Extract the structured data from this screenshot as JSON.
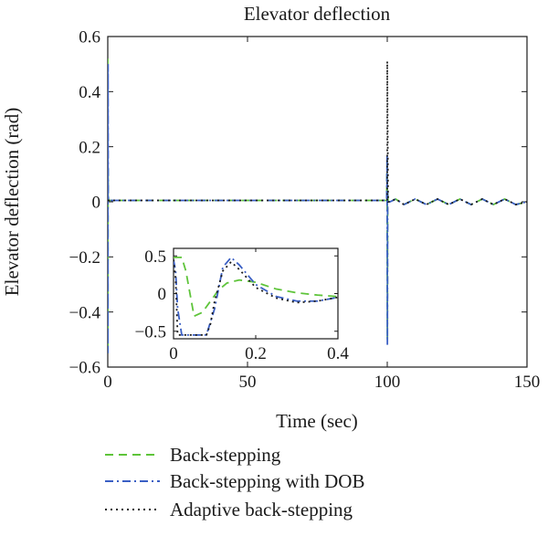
{
  "chart_data": {
    "type": "line",
    "title": "Elevator deflection",
    "xlabel": "Time (sec)",
    "ylabel": "Elevator deflection (rad)",
    "xlim": [
      0,
      150
    ],
    "ylim": [
      -0.6,
      0.6
    ],
    "xticks": [
      0,
      50,
      100,
      150
    ],
    "xtick_labels": [
      "0",
      "50",
      "100",
      "150"
    ],
    "yticks": [
      0.6,
      0.4,
      0.2,
      0,
      -0.2,
      -0.4,
      -0.6
    ],
    "ytick_labels": [
      "0.6",
      "0.4",
      "0.2",
      "0",
      "−0.2",
      "−0.4",
      "−0.6"
    ],
    "grid": false,
    "legend_position": "below",
    "series": [
      {
        "name": "Back-stepping",
        "color": "#5ec43a",
        "dash": "dashed",
        "x": [
          0,
          0.05,
          0.1,
          0.15,
          0.3,
          1,
          5,
          20,
          50,
          80,
          99.8,
          99.95,
          100.05,
          100.15,
          100.3,
          101,
          103,
          106,
          110,
          114,
          118,
          122,
          126,
          130,
          134,
          138,
          142,
          146,
          150
        ],
        "y": [
          0.52,
          -0.55,
          0.12,
          0.02,
          0.005,
          0.005,
          0.005,
          0.005,
          0.005,
          0.005,
          0.005,
          0.16,
          -0.5,
          0.04,
          0.0,
          0.0,
          0.01,
          -0.01,
          0.01,
          -0.01,
          0.01,
          -0.01,
          0.01,
          -0.01,
          0.01,
          -0.01,
          0.01,
          -0.01,
          0.0
        ]
      },
      {
        "name": "Back-stepping with DOB",
        "color": "#3a5fc4",
        "dash": "dashdot",
        "x": [
          0,
          0.05,
          0.1,
          0.15,
          0.3,
          1,
          5,
          20,
          50,
          80,
          99.8,
          99.95,
          100.05,
          100.15,
          100.3,
          101,
          103,
          106,
          110,
          114,
          118,
          122,
          126,
          130,
          134,
          138,
          142,
          146,
          150
        ],
        "y": [
          0.48,
          -0.55,
          0.5,
          0.02,
          0.005,
          0.005,
          0.005,
          0.005,
          0.005,
          0.005,
          0.005,
          0.17,
          -0.52,
          0.04,
          0.0,
          0.0,
          0.01,
          -0.01,
          0.01,
          -0.01,
          0.01,
          -0.01,
          0.01,
          -0.01,
          0.01,
          -0.01,
          0.01,
          -0.01,
          0.0
        ]
      },
      {
        "name": "Adaptive back-stepping",
        "color": "#1a1a1a",
        "dash": "dotted",
        "x": [
          0,
          100,
          100,
          100.3,
          101,
          103,
          106,
          110,
          114,
          118,
          122,
          126,
          130,
          134,
          138,
          142,
          146,
          150
        ],
        "y": [
          0.005,
          0.005,
          0.51,
          0.0,
          0.0,
          0.01,
          -0.01,
          0.01,
          -0.01,
          0.01,
          -0.01,
          0.01,
          -0.01,
          0.01,
          -0.01,
          0.01,
          -0.01,
          0.0
        ]
      }
    ],
    "inset": {
      "xlim": [
        0,
        0.4
      ],
      "ylim": [
        -0.6,
        0.6
      ],
      "xticks": [
        0,
        0.2,
        0.4
      ],
      "xtick_labels": [
        "0",
        "0.2",
        "0.4"
      ],
      "yticks": [
        0.5,
        0,
        -0.5
      ],
      "ytick_labels": [
        "0.5",
        "0",
        "−0.5"
      ],
      "series": [
        {
          "name": "Back-stepping",
          "x": [
            0,
            0.01,
            0.02,
            0.03,
            0.05,
            0.07,
            0.09,
            0.11,
            0.13,
            0.16,
            0.2,
            0.25,
            0.3,
            0.35,
            0.4
          ],
          "y": [
            0.48,
            0.48,
            0.48,
            0.3,
            -0.3,
            -0.25,
            -0.1,
            0.05,
            0.14,
            0.18,
            0.15,
            0.06,
            0.01,
            -0.02,
            -0.04
          ]
        },
        {
          "name": "Back-stepping with DOB",
          "x": [
            0,
            0.005,
            0.01,
            0.02,
            0.04,
            0.06,
            0.08,
            0.1,
            0.12,
            0.14,
            0.16,
            0.2,
            0.25,
            0.3,
            0.35,
            0.4
          ],
          "y": [
            0.45,
            0.3,
            -0.2,
            -0.55,
            -0.55,
            -0.55,
            -0.55,
            -0.2,
            0.35,
            0.48,
            0.38,
            0.12,
            -0.04,
            -0.1,
            -0.1,
            -0.05
          ]
        },
        {
          "name": "Adaptive back-stepping",
          "x": [
            0,
            0.005,
            0.01,
            0.02,
            0.04,
            0.06,
            0.08,
            0.09,
            0.1,
            0.12,
            0.14,
            0.16,
            0.2,
            0.25,
            0.3,
            0.35,
            0.4
          ],
          "y": [
            0.45,
            0.2,
            -0.55,
            -0.55,
            -0.55,
            -0.55,
            -0.55,
            -0.4,
            -0.1,
            0.3,
            0.42,
            0.32,
            0.08,
            -0.06,
            -0.12,
            -0.1,
            -0.05
          ]
        }
      ]
    }
  }
}
